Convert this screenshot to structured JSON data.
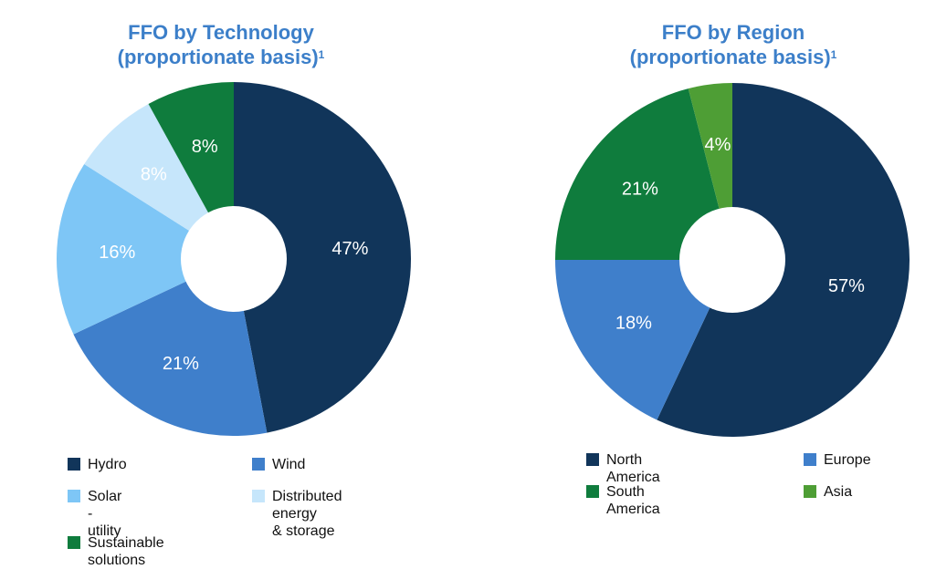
{
  "colors": {
    "hydro": "#11355a",
    "wind": "#3f7fcb",
    "solar_utility": "#7ec6f6",
    "distributed": "#c6e6fb",
    "sustainable": "#0f7c3d",
    "north_america": "#11355a",
    "europe": "#3f7fcb",
    "south_america": "#0f7c3d",
    "asia": "#4e9e35",
    "title": "#3c7fc9"
  },
  "chart_data": [
    {
      "type": "pie",
      "donut": true,
      "title": "FFO by Technology",
      "subtitle": "(proportionate basis)",
      "footnote_marker": "1",
      "categories": [
        "Hydro",
        "Wind",
        "Solar - utility",
        "Distributed energy\n& storage",
        "Sustainable solutions"
      ],
      "values": [
        47,
        21,
        16,
        8,
        8
      ],
      "data_labels": [
        "47%",
        "21%",
        "16%",
        "8%",
        "8%"
      ],
      "series_colors": [
        "#11355a",
        "#3f7fcb",
        "#7ec6f6",
        "#c6e6fb",
        "#0f7c3d"
      ],
      "label_colors": [
        "#ffffff",
        "#ffffff",
        "#ffffff",
        "#ffffff",
        "#ffffff"
      ],
      "legend_position": "bottom"
    },
    {
      "type": "pie",
      "donut": true,
      "title": "FFO by Region",
      "subtitle": "(proportionate basis)",
      "footnote_marker": "1",
      "categories": [
        "North  America",
        "Europe",
        "South America",
        "Asia"
      ],
      "values": [
        57,
        18,
        21,
        4
      ],
      "data_labels": [
        "57%",
        "18%",
        "21%",
        "4%"
      ],
      "series_colors": [
        "#11355a",
        "#3f7fcb",
        "#0f7c3d",
        "#4e9e35"
      ],
      "label_colors": [
        "#ffffff",
        "#ffffff",
        "#ffffff",
        "#ffffff"
      ],
      "legend_position": "bottom"
    }
  ]
}
